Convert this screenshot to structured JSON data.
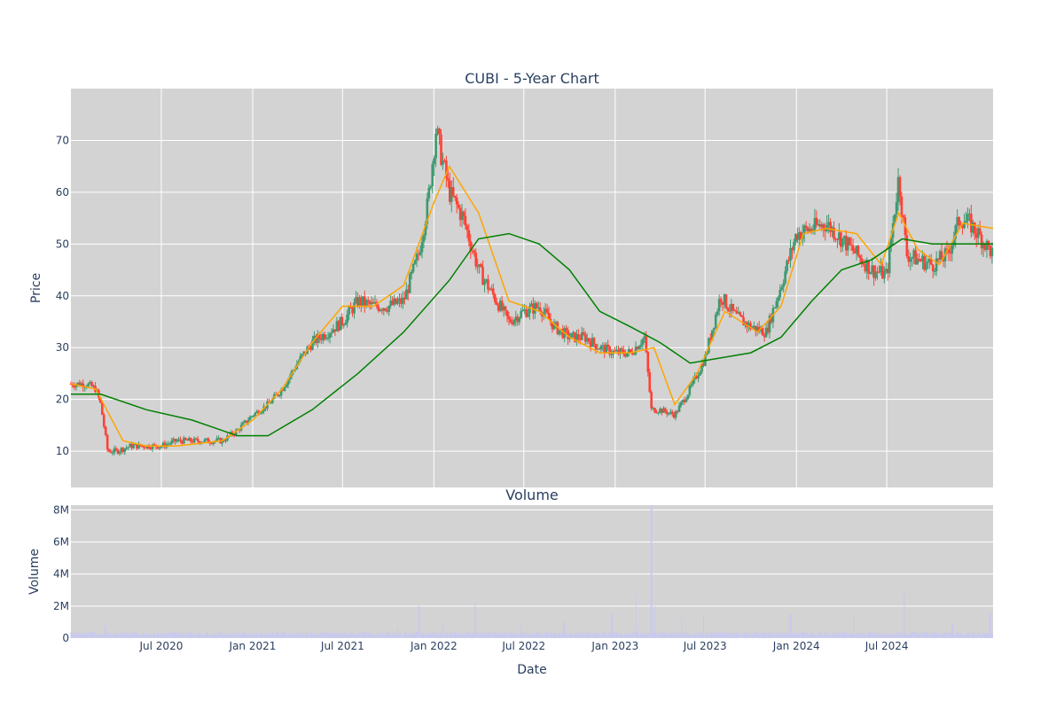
{
  "chart_data": [
    {
      "type": "candlestick",
      "title": "CUBI - 5-Year Chart",
      "xlabel": "",
      "ylabel": "Price",
      "ylim": [
        3,
        80
      ],
      "xlim": [
        "2020-01-01",
        "2025-01-31"
      ],
      "yticks": [
        10,
        20,
        30,
        40,
        50,
        60,
        70
      ],
      "grid": true,
      "background": "#d3d3d3",
      "colors": {
        "up": "#3d9970",
        "down": "#ff4136",
        "ma_short": "#ffa500",
        "ma_long": "#008000"
      },
      "series": [
        {
          "kind": "price",
          "x": [
            "2020-01-01",
            "2020-02-01",
            "2020-02-20",
            "2020-03-01",
            "2020-03-15",
            "2020-04-01",
            "2020-05-01",
            "2020-06-01",
            "2020-07-01",
            "2020-08-01",
            "2020-09-01",
            "2020-10-01",
            "2020-11-01",
            "2020-12-01",
            "2021-01-01",
            "2021-02-01",
            "2021-03-01",
            "2021-04-01",
            "2021-05-01",
            "2021-06-01",
            "2021-07-01",
            "2021-08-01",
            "2021-09-01",
            "2021-10-01",
            "2021-11-01",
            "2021-12-01",
            "2021-12-20",
            "2022-01-05",
            "2022-02-01",
            "2022-03-01",
            "2022-04-01",
            "2022-05-01",
            "2022-06-01",
            "2022-07-01",
            "2022-08-01",
            "2022-09-01",
            "2022-10-01",
            "2022-11-01",
            "2022-12-01",
            "2023-01-01",
            "2023-02-01",
            "2023-03-01",
            "2023-03-15",
            "2023-04-01",
            "2023-05-01",
            "2023-06-01",
            "2023-07-01",
            "2023-08-01",
            "2023-09-01",
            "2023-10-01",
            "2023-11-01",
            "2023-12-01",
            "2024-01-01",
            "2024-02-01",
            "2024-03-01",
            "2024-04-01",
            "2024-05-01",
            "2024-06-01",
            "2024-07-01",
            "2024-07-25",
            "2024-08-10",
            "2024-09-01",
            "2024-10-01",
            "2024-11-01",
            "2024-11-25",
            "2024-12-15",
            "2025-01-31"
          ],
          "y": [
            23,
            23,
            22,
            19,
            10,
            10,
            11,
            11,
            11,
            12,
            12,
            12,
            12,
            14,
            17,
            19,
            22,
            27,
            31,
            33,
            35,
            39,
            38,
            38,
            39,
            48,
            58,
            72,
            60,
            55,
            45,
            40,
            35,
            37,
            38,
            34,
            32,
            32,
            30,
            29,
            29,
            32,
            18,
            18,
            17,
            22,
            28,
            40,
            36,
            34,
            33,
            42,
            52,
            53,
            54,
            51,
            48,
            45,
            44,
            63,
            48,
            47,
            46,
            48,
            55,
            54,
            48
          ]
        },
        {
          "kind": "ma_short",
          "name": "",
          "x": [
            "2020-01-01",
            "2020-02-20",
            "2020-04-15",
            "2020-06-01",
            "2020-08-01",
            "2020-11-01",
            "2021-01-01",
            "2021-03-01",
            "2021-05-01",
            "2021-07-01",
            "2021-09-01",
            "2021-11-01",
            "2022-01-01",
            "2022-02-01",
            "2022-04-01",
            "2022-06-01",
            "2022-08-01",
            "2022-10-01",
            "2022-12-01",
            "2023-02-01",
            "2023-03-20",
            "2023-05-01",
            "2023-06-15",
            "2023-08-10",
            "2023-10-15",
            "2023-12-01",
            "2024-01-15",
            "2024-03-01",
            "2024-05-01",
            "2024-06-20",
            "2024-07-25",
            "2024-09-01",
            "2024-10-15",
            "2024-12-01",
            "2025-01-31"
          ],
          "y": [
            23,
            22,
            12,
            11,
            11,
            12,
            16,
            22,
            31,
            38,
            38,
            42,
            58,
            65,
            56,
            39,
            37,
            32,
            29,
            29,
            30,
            19,
            25,
            37,
            33,
            38,
            52,
            53,
            52,
            46,
            56,
            49,
            46,
            54,
            53
          ]
        },
        {
          "kind": "ma_long",
          "name": "",
          "x": [
            "2020-01-01",
            "2020-03-01",
            "2020-06-01",
            "2020-09-01",
            "2020-12-01",
            "2021-02-01",
            "2021-05-01",
            "2021-08-01",
            "2021-11-01",
            "2022-02-01",
            "2022-04-01",
            "2022-06-01",
            "2022-08-01",
            "2022-10-01",
            "2022-12-01",
            "2023-02-01",
            "2023-04-01",
            "2023-06-01",
            "2023-08-01",
            "2023-10-01",
            "2023-12-01",
            "2024-02-01",
            "2024-04-01",
            "2024-06-01",
            "2024-08-01",
            "2024-10-01",
            "2025-01-31"
          ],
          "y": [
            21,
            21,
            18,
            16,
            13,
            13,
            18,
            25,
            33,
            43,
            51,
            52,
            50,
            45,
            37,
            34,
            31,
            27,
            28,
            29,
            32,
            39,
            45,
            47,
            51,
            50,
            50
          ]
        }
      ]
    },
    {
      "type": "bar",
      "title": "Volume",
      "xlabel": "Date",
      "ylabel": "Volume",
      "ylim": [
        0,
        8300000
      ],
      "yticks": [
        0,
        2000000,
        4000000,
        6000000,
        8000000
      ],
      "ytick_labels": [
        "0",
        "2M",
        "4M",
        "6M",
        "8M"
      ],
      "xticks": [
        "2020-07-01",
        "2021-01-01",
        "2021-07-01",
        "2022-01-01",
        "2022-07-01",
        "2023-01-01",
        "2023-07-01",
        "2024-01-01",
        "2024-07-01"
      ],
      "xtick_labels": [
        "Jul 2020",
        "Jan 2021",
        "Jul 2021",
        "Jan 2022",
        "Jul 2022",
        "Jan 2023",
        "Jul 2023",
        "Jan 2024",
        "Jul 2024"
      ],
      "grid": true,
      "background": "#d3d3d3",
      "bar_color": "#c8c8f0",
      "base_volume": 300000,
      "spikes": [
        {
          "x": "2020-03-10",
          "value": 800000
        },
        {
          "x": "2021-10-20",
          "value": 700000
        },
        {
          "x": "2021-12-02",
          "value": 2000000
        },
        {
          "x": "2022-01-20",
          "value": 900000
        },
        {
          "x": "2022-03-25",
          "value": 2200000
        },
        {
          "x": "2022-06-25",
          "value": 900000
        },
        {
          "x": "2022-09-20",
          "value": 1000000
        },
        {
          "x": "2022-12-25",
          "value": 1500000
        },
        {
          "x": "2023-02-12",
          "value": 2800000
        },
        {
          "x": "2023-03-15",
          "value": 8300000
        },
        {
          "x": "2023-03-22",
          "value": 2000000
        },
        {
          "x": "2023-05-15",
          "value": 1300000
        },
        {
          "x": "2023-06-28",
          "value": 1500000
        },
        {
          "x": "2023-12-20",
          "value": 1500000
        },
        {
          "x": "2024-04-25",
          "value": 1600000
        },
        {
          "x": "2024-08-05",
          "value": 3000000
        },
        {
          "x": "2024-11-10",
          "value": 900000
        },
        {
          "x": "2025-01-25",
          "value": 1500000
        }
      ]
    }
  ]
}
